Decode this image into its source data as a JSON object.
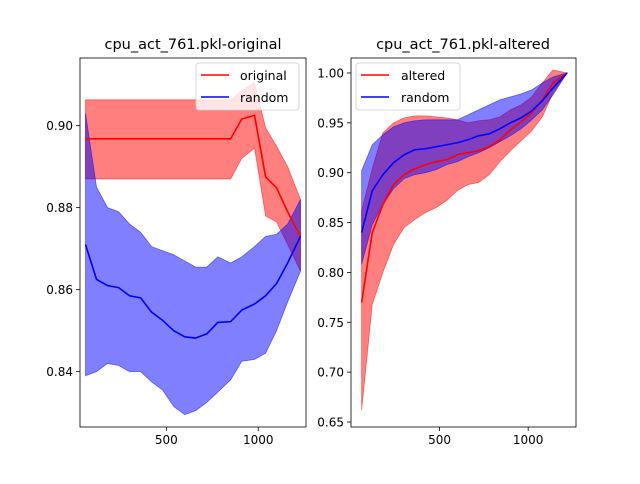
{
  "chart_data": [
    {
      "type": "line",
      "title": "cpu_act_761.pkl-original",
      "xlabel": "",
      "ylabel": "",
      "xlim": [
        30,
        1260
      ],
      "ylim": [
        0.8265,
        0.9165
      ],
      "xticks": [
        500,
        1000
      ],
      "yticks": [
        0.84,
        0.86,
        0.88,
        0.9
      ],
      "ytick_labels": [
        "0.84",
        "0.86",
        "0.88",
        "0.90"
      ],
      "legend_position": "upper right",
      "series": [
        {
          "name": "original",
          "color": "#ff0000",
          "band_color": "#ff0000",
          "x": [
            60,
            130,
            180,
            240,
            300,
            360,
            420,
            480,
            540,
            600,
            660,
            720,
            780,
            850,
            910,
            980,
            1040,
            1100,
            1160,
            1230
          ],
          "mean": [
            0.8968,
            0.8968,
            0.8968,
            0.8968,
            0.8968,
            0.8968,
            0.8968,
            0.8968,
            0.8968,
            0.8968,
            0.8968,
            0.8968,
            0.8968,
            0.8968,
            0.9016,
            0.9025,
            0.8875,
            0.8848,
            0.879,
            0.873
          ],
          "lower": [
            0.887,
            0.887,
            0.887,
            0.887,
            0.887,
            0.887,
            0.887,
            0.887,
            0.887,
            0.887,
            0.887,
            0.887,
            0.887,
            0.887,
            0.892,
            0.8945,
            0.878,
            0.8765,
            0.871,
            0.8645
          ],
          "upper": [
            0.9063,
            0.9063,
            0.9063,
            0.9063,
            0.9063,
            0.9063,
            0.9063,
            0.9063,
            0.9063,
            0.9063,
            0.9063,
            0.9063,
            0.9063,
            0.9063,
            0.9085,
            0.9105,
            0.8995,
            0.895,
            0.89,
            0.882
          ]
        },
        {
          "name": "random",
          "color": "#0000ff",
          "band_color": "#0000ff",
          "x": [
            60,
            120,
            180,
            240,
            300,
            360,
            420,
            480,
            540,
            600,
            660,
            720,
            780,
            850,
            910,
            980,
            1040,
            1100,
            1160,
            1230
          ],
          "mean": [
            0.871,
            0.8625,
            0.861,
            0.8605,
            0.8585,
            0.858,
            0.8545,
            0.8525,
            0.85,
            0.8485,
            0.8482,
            0.8492,
            0.852,
            0.8522,
            0.855,
            0.8565,
            0.8585,
            0.8615,
            0.8665,
            0.873
          ],
          "lower": [
            0.839,
            0.84,
            0.842,
            0.8415,
            0.84,
            0.84,
            0.8375,
            0.8355,
            0.8315,
            0.8295,
            0.8305,
            0.8325,
            0.835,
            0.838,
            0.8425,
            0.843,
            0.8445,
            0.85,
            0.857,
            0.8645
          ],
          "upper": [
            0.903,
            0.885,
            0.88,
            0.879,
            0.876,
            0.874,
            0.8705,
            0.8695,
            0.8685,
            0.867,
            0.8655,
            0.8655,
            0.868,
            0.8665,
            0.868,
            0.8705,
            0.873,
            0.8735,
            0.876,
            0.882
          ]
        }
      ]
    },
    {
      "type": "line",
      "title": "cpu_act_761.pkl-altered",
      "xlabel": "",
      "ylabel": "",
      "xlim": [
        0,
        1270
      ],
      "ylim": [
        0.645,
        1.015
      ],
      "xticks": [
        500,
        1000
      ],
      "yticks": [
        0.65,
        0.7,
        0.75,
        0.8,
        0.85,
        0.9,
        0.95,
        1.0
      ],
      "ytick_labels": [
        "0.65",
        "0.70",
        "0.75",
        "0.80",
        "0.85",
        "0.90",
        "0.95",
        "1.00"
      ],
      "legend_position": "upper left",
      "series": [
        {
          "name": "altered",
          "color": "#ff0000",
          "band_color": "#ff0000",
          "x": [
            60,
            120,
            180,
            240,
            300,
            360,
            420,
            480,
            540,
            600,
            660,
            720,
            780,
            840,
            900,
            960,
            1020,
            1080,
            1140,
            1220
          ],
          "mean": [
            0.77,
            0.84,
            0.868,
            0.888,
            0.898,
            0.904,
            0.908,
            0.911,
            0.913,
            0.918,
            0.92,
            0.922,
            0.926,
            0.933,
            0.943,
            0.951,
            0.96,
            0.973,
            0.99,
            1.0
          ],
          "lower": [
            0.662,
            0.768,
            0.8,
            0.828,
            0.845,
            0.853,
            0.86,
            0.865,
            0.872,
            0.882,
            0.888,
            0.89,
            0.898,
            0.911,
            0.922,
            0.932,
            0.942,
            0.956,
            0.98,
            1.0
          ],
          "upper": [
            0.862,
            0.904,
            0.94,
            0.95,
            0.955,
            0.957,
            0.957,
            0.956,
            0.955,
            0.953,
            0.95,
            0.952,
            0.953,
            0.956,
            0.963,
            0.968,
            0.976,
            0.99,
            1.003,
            1.0
          ]
        },
        {
          "name": "random",
          "color": "#0000ff",
          "band_color": "#0000ff",
          "x": [
            60,
            120,
            180,
            240,
            300,
            360,
            420,
            480,
            540,
            600,
            660,
            720,
            780,
            840,
            900,
            960,
            1020,
            1080,
            1140,
            1220
          ],
          "mean": [
            0.84,
            0.882,
            0.898,
            0.91,
            0.918,
            0.923,
            0.924,
            0.926,
            0.928,
            0.93,
            0.933,
            0.937,
            0.939,
            0.944,
            0.95,
            0.955,
            0.962,
            0.972,
            0.985,
            1.0
          ],
          "lower": [
            0.808,
            0.848,
            0.868,
            0.884,
            0.894,
            0.898,
            0.9,
            0.903,
            0.908,
            0.911,
            0.916,
            0.92,
            0.925,
            0.931,
            0.937,
            0.944,
            0.953,
            0.963,
            0.978,
            1.0
          ],
          "upper": [
            0.902,
            0.928,
            0.938,
            0.946,
            0.95,
            0.952,
            0.953,
            0.953,
            0.953,
            0.953,
            0.958,
            0.963,
            0.968,
            0.973,
            0.976,
            0.979,
            0.983,
            0.99,
            0.996,
            1.0
          ]
        }
      ]
    }
  ]
}
